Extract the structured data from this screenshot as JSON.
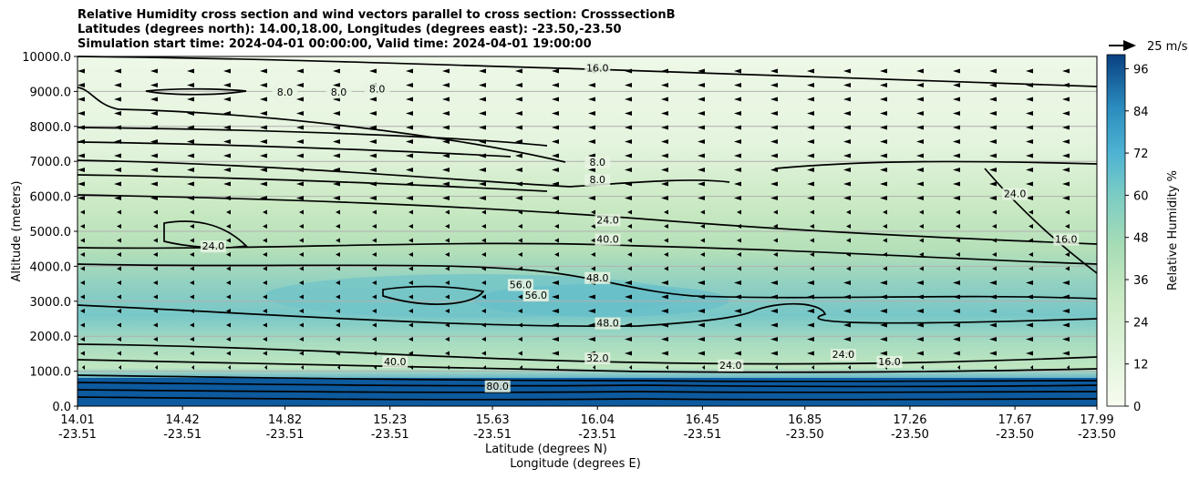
{
  "title_lines": [
    "Relative Humidity cross section and wind vectors parallel to cross section: CrosssectionB",
    "Latitudes (degrees north): 14.00,18.00, Longitudes (degrees east): -23.50,-23.50",
    "Simulation start time: 2024-04-01 00:00:00, Valid time: 2024-04-01 19:00:00"
  ],
  "quiver_key": "25 m/s",
  "colors": {
    "low": "#f7fcf0",
    "mid": "#7bccc4",
    "high": "#084081",
    "contour": "#000000",
    "grid": "#b0b0b0"
  },
  "chart_data": {
    "type": "heatmap",
    "ylabel": "Altitude (meters)",
    "xlabel_lat": "Latitude (degrees N)",
    "xlabel_lon": "Longitude (degrees E)",
    "ylim": [
      0,
      10000
    ],
    "yticks": [
      "0.0",
      "1000.0",
      "2000.0",
      "3000.0",
      "4000.0",
      "5000.0",
      "6000.0",
      "7000.0",
      "8000.0",
      "9000.0",
      "10000.0"
    ],
    "xticks": [
      {
        "lat": "14.01",
        "lon": "-23.51"
      },
      {
        "lat": "14.42",
        "lon": "-23.51"
      },
      {
        "lat": "14.82",
        "lon": "-23.51"
      },
      {
        "lat": "15.23",
        "lon": "-23.51"
      },
      {
        "lat": "15.63",
        "lon": "-23.51"
      },
      {
        "lat": "16.04",
        "lon": "-23.51"
      },
      {
        "lat": "16.45",
        "lon": "-23.51"
      },
      {
        "lat": "16.85",
        "lon": "-23.50"
      },
      {
        "lat": "17.26",
        "lon": "-23.50"
      },
      {
        "lat": "17.67",
        "lon": "-23.50"
      },
      {
        "lat": "17.99",
        "lon": "-23.50"
      }
    ],
    "grid": "horizontal",
    "colorbar": {
      "label": "Relative Humidity %",
      "range": [
        0,
        100
      ],
      "ticks": [
        "0",
        "12",
        "24",
        "36",
        "48",
        "60",
        "72",
        "84",
        "96"
      ]
    },
    "contour_labels": [
      {
        "text": "16.0",
        "lat": 16.04,
        "alt": 9600
      },
      {
        "text": "8.0",
        "lat": 14.82,
        "alt": 8900
      },
      {
        "text": "8.0",
        "lat": 15.03,
        "alt": 8900
      },
      {
        "text": "8.0",
        "lat": 15.18,
        "alt": 9000
      },
      {
        "text": "8.0",
        "lat": 16.04,
        "alt": 6900
      },
      {
        "text": "8.0",
        "lat": 16.04,
        "alt": 6400
      },
      {
        "text": "24.0",
        "lat": 17.67,
        "alt": 6000
      },
      {
        "text": "24.0",
        "lat": 16.08,
        "alt": 5250
      },
      {
        "text": "16.0",
        "lat": 17.87,
        "alt": 4700
      },
      {
        "text": "24.0",
        "lat": 14.54,
        "alt": 4500
      },
      {
        "text": "40.0",
        "lat": 16.08,
        "alt": 4700
      },
      {
        "text": "48.0",
        "lat": 16.04,
        "alt": 3600
      },
      {
        "text": "56.0",
        "lat": 15.74,
        "alt": 3400
      },
      {
        "text": "56.0",
        "lat": 15.8,
        "alt": 3100
      },
      {
        "text": "48.0",
        "lat": 16.08,
        "alt": 2300
      },
      {
        "text": "32.0",
        "lat": 16.04,
        "alt": 1300
      },
      {
        "text": "24.0",
        "lat": 16.56,
        "alt": 1100
      },
      {
        "text": "24.0",
        "lat": 17.0,
        "alt": 1400
      },
      {
        "text": "16.0",
        "lat": 17.18,
        "alt": 1200
      },
      {
        "text": "40.0",
        "lat": 15.25,
        "alt": 1200
      },
      {
        "text": "80.0",
        "lat": 15.65,
        "alt": 500
      }
    ]
  }
}
